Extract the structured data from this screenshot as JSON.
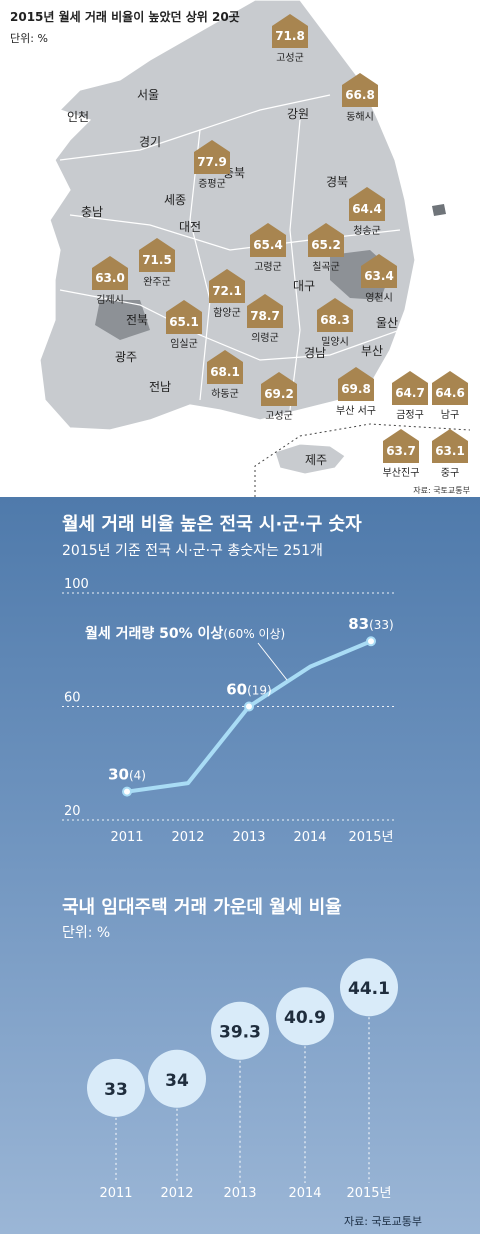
{
  "map": {
    "title": "2015년 월세 거래 비율이 높았던 상위 20곳",
    "unit": "단위: %",
    "source": "자료: 국토교통부",
    "region_labels": [
      "서울",
      "인천",
      "경기",
      "강원",
      "충북",
      "세종",
      "충남",
      "대전",
      "경북",
      "전북",
      "대구",
      "울산",
      "광주",
      "전남",
      "경남",
      "부산",
      "제주"
    ],
    "markers": [
      {
        "value": "71.8",
        "name": "고성군"
      },
      {
        "value": "66.8",
        "name": "동해시"
      },
      {
        "value": "77.9",
        "name": "증평군"
      },
      {
        "value": "64.4",
        "name": "청송군"
      },
      {
        "value": "65.4",
        "name": "고령군"
      },
      {
        "value": "65.2",
        "name": "칠곡군"
      },
      {
        "value": "71.5",
        "name": "완주군"
      },
      {
        "value": "63.0",
        "name": "김제시"
      },
      {
        "value": "72.1",
        "name": "함양군"
      },
      {
        "value": "63.4",
        "name": "영천시"
      },
      {
        "value": "65.1",
        "name": "임실군"
      },
      {
        "value": "78.7",
        "name": "의령군"
      },
      {
        "value": "68.3",
        "name": "밀양시"
      },
      {
        "value": "68.1",
        "name": "하동군"
      },
      {
        "value": "69.2",
        "name": "고성군"
      },
      {
        "value": "69.8",
        "name": "부산 서구"
      },
      {
        "value": "64.7",
        "name": "금정구"
      },
      {
        "value": "64.6",
        "name": "남구"
      },
      {
        "value": "63.7",
        "name": "부산진구"
      },
      {
        "value": "63.1",
        "name": "중구"
      }
    ]
  },
  "section1": {
    "title": "월세 거래 비율 높은 전국 시·군·구 숫자",
    "subtitle": "2015년 기준 전국 시·군·구 총숫자는 251개"
  },
  "section2": {
    "title": "국내 임대주택 거래 가운데 월세 비율",
    "unit": "단위: %",
    "source": "자료: 국토교통부"
  },
  "chart_data": [
    {
      "type": "line",
      "title": "월세 거래 비율 높은 전국 시·군·구 숫자",
      "subtitle": "2015년 기준 전국 시·군·구 총숫자는 251개",
      "categories": [
        "2011",
        "2012",
        "2013",
        "2014",
        "2015년"
      ],
      "series": [
        {
          "name": "월세 거래량 50% 이상",
          "values": [
            30,
            33,
            60,
            74,
            83
          ]
        },
        {
          "name": "60% 이상",
          "values": [
            4,
            null,
            19,
            null,
            33
          ]
        }
      ],
      "data_labels": [
        {
          "index": 0,
          "main": "30",
          "paren": "(4)"
        },
        {
          "index": 2,
          "main": "60",
          "paren": "(19)"
        },
        {
          "index": 4,
          "main": "83",
          "paren": "(33)"
        }
      ],
      "legend_main": "월세 거래량 50% 이상",
      "legend_paren": "(60% 이상)",
      "yticks": [
        "100",
        "60",
        "20"
      ],
      "ylim": [
        20,
        100
      ],
      "grid": true
    },
    {
      "type": "bubble",
      "title": "국내 임대주택 거래 가운데 월세 비율",
      "unit": "단위: %",
      "categories": [
        "2011",
        "2012",
        "2013",
        "2014",
        "2015년"
      ],
      "values": [
        33,
        34,
        39.3,
        40.9,
        44.1
      ],
      "labels": [
        "33",
        "34",
        "39.3",
        "40.9",
        "44.1"
      ]
    }
  ],
  "colors": {
    "marker": "#a88550",
    "line": "#a9dcf5",
    "bubble": "#d9ebf9",
    "land": "#c4c7cb",
    "highlight": "#8e9298"
  }
}
